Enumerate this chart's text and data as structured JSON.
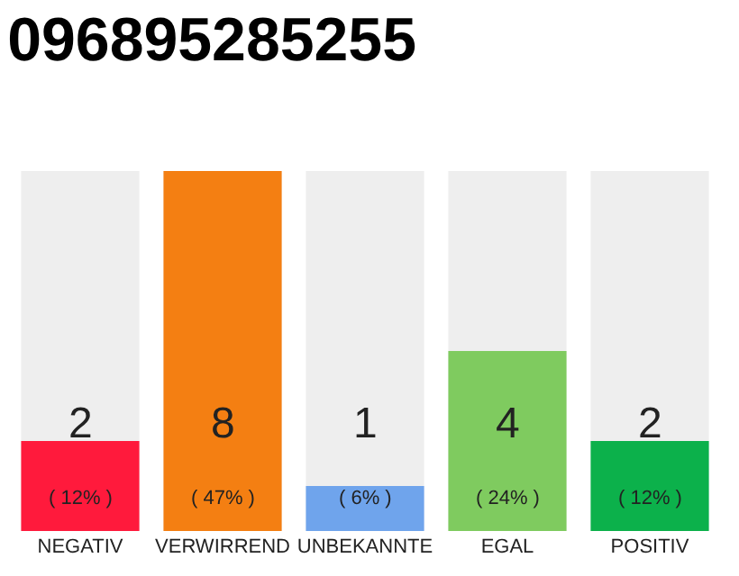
{
  "chart_data": {
    "type": "bar",
    "title": "096895285255",
    "ylim": [
      0,
      8
    ],
    "categories": [
      "NEGATIV",
      "VERWIRREND",
      "UNBEKANNTE",
      "EGAL",
      "POSITIV"
    ],
    "values": [
      2,
      8,
      1,
      4,
      2
    ],
    "colors": [
      "#ff1a3c",
      "#f47f12",
      "#6fa4ec",
      "#7fcb5f",
      "#0cb14b"
    ],
    "value_labels": [
      "2\n( 12% )",
      "8\n( 47% )",
      "1\n( 6% )",
      "4\n( 24% )",
      "2\n( 12% )"
    ],
    "grid": false,
    "legend": false
  }
}
